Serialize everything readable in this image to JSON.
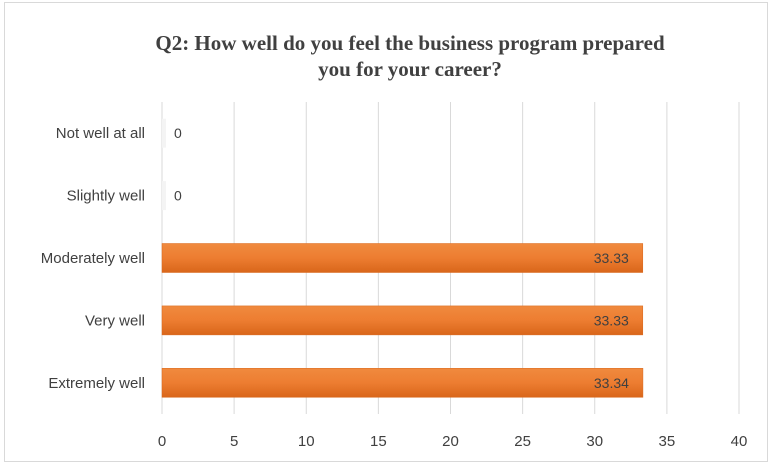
{
  "chart_data": {
    "type": "bar",
    "orientation": "horizontal",
    "title": "Q2: How well do you feel the business program prepared you for your career?",
    "title_lines": [
      "Q2: How well do you feel the business program prepared",
      "you for your career?"
    ],
    "categories": [
      "Not well at all",
      "Slightly well",
      "Moderately well",
      "Very well",
      "Extremely well"
    ],
    "values": [
      0,
      0,
      33.33,
      33.33,
      33.34
    ],
    "value_labels": [
      "0",
      "0",
      "33.33",
      "33.33",
      "33.34"
    ],
    "xlim": [
      0,
      40
    ],
    "x_ticks": [
      0,
      5,
      10,
      15,
      20,
      25,
      30,
      35,
      40
    ],
    "xlabel": "",
    "ylabel": "",
    "grid": true,
    "legend": "none",
    "bar_color": "#ED7D31",
    "bar_color_dark": "#D9661A",
    "grid_color": "#d9d9d9",
    "text_color": "#404040"
  }
}
